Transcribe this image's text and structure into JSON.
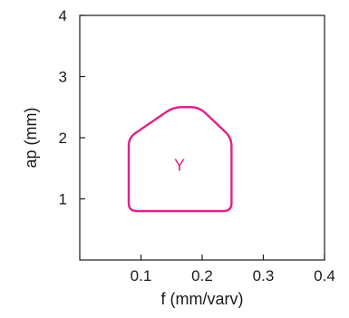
{
  "chart_data": {
    "type": "area",
    "title": "",
    "xlabel": "f (mm/varv)",
    "ylabel": "ap (mm)",
    "xlim": [
      0,
      0.4
    ],
    "ylim": [
      0,
      4
    ],
    "xticks": [
      0.1,
      0.2,
      0.3,
      0.4
    ],
    "xtick_labels": [
      "0.1",
      "0.2",
      "0.3",
      "0.4"
    ],
    "yticks": [
      1,
      2,
      3,
      4
    ],
    "ytick_labels": [
      "1",
      "2",
      "3",
      "4"
    ],
    "grid": false,
    "regions": [
      {
        "label": "Y",
        "color": "#e0218a",
        "fill": "none",
        "label_at": {
          "x": 0.163,
          "y": 1.55
        },
        "boundary": [
          {
            "x": 0.08,
            "y": 0.8
          },
          {
            "x": 0.248,
            "y": 0.8
          },
          {
            "x": 0.248,
            "y": 2.0
          },
          {
            "x": 0.195,
            "y": 2.5
          },
          {
            "x": 0.153,
            "y": 2.5
          },
          {
            "x": 0.08,
            "y": 2.0
          }
        ]
      }
    ]
  }
}
